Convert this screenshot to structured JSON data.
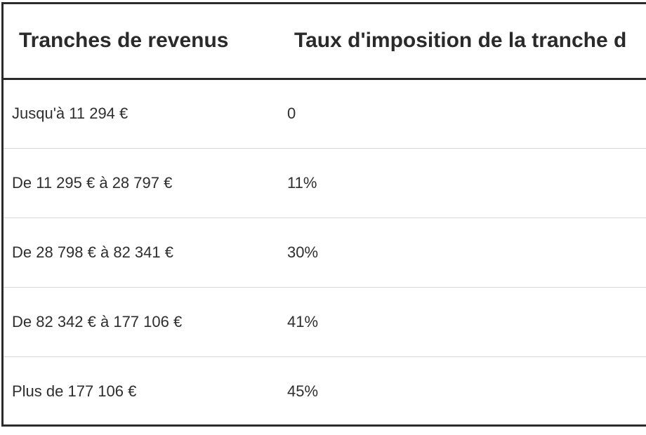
{
  "table": {
    "headers": [
      "Tranches de revenus",
      "Taux d'imposition de la tranche d"
    ],
    "rows": [
      {
        "bracket": "Jusqu'à 11 294 €",
        "rate": "0"
      },
      {
        "bracket": "De 11 295 € à 28 797 €",
        "rate": "11%"
      },
      {
        "bracket": "De 28 798 € à 82 341 €",
        "rate": "30%"
      },
      {
        "bracket": "De 82 342 € à 177 106 €",
        "rate": "41%"
      },
      {
        "bracket": "Plus de 177 106 €",
        "rate": "45%"
      }
    ]
  }
}
